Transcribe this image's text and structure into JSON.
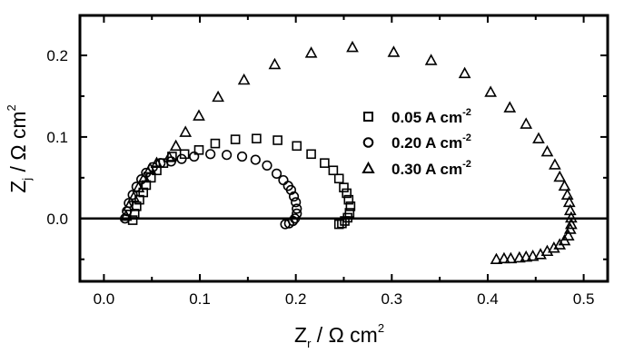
{
  "chart_data": {
    "type": "scatter",
    "title": "",
    "xlabel": "Z_r / Ω cm^2",
    "ylabel": "Z_j / Ω cm^2",
    "xlabel_parts": {
      "main": "Z",
      "sub": "r",
      "rest": " / Ω cm",
      "sup": "2"
    },
    "ylabel_parts": {
      "main": "Z",
      "sub": "j",
      "rest": " / Ω cm",
      "sup": "2"
    },
    "xlim": [
      -0.025,
      0.525
    ],
    "ylim": [
      -0.077,
      0.249
    ],
    "xticks": [
      0.0,
      0.1,
      0.2,
      0.3,
      0.4,
      0.5
    ],
    "xtick_labels": [
      "0.0",
      "0.1",
      "0.2",
      "0.3",
      "0.4",
      "0.5"
    ],
    "yticks": [
      0.0,
      0.1,
      0.2
    ],
    "ytick_labels": [
      "0.0",
      "0.1",
      "0.2"
    ],
    "grid": false,
    "zero_line": true,
    "legend_position": "inside-center",
    "series": [
      {
        "name": "0.05 A cm-2",
        "label_main": "0.05 A cm",
        "label_sup": "-2",
        "marker": "square",
        "points": [
          [
            0.03,
            -0.002
          ],
          [
            0.032,
            0.006
          ],
          [
            0.034,
            0.015
          ],
          [
            0.037,
            0.023
          ],
          [
            0.041,
            0.032
          ],
          [
            0.044,
            0.041
          ],
          [
            0.049,
            0.05
          ],
          [
            0.055,
            0.059
          ],
          [
            0.062,
            0.068
          ],
          [
            0.071,
            0.076
          ],
          [
            0.084,
            0.079
          ],
          [
            0.099,
            0.084
          ],
          [
            0.116,
            0.092
          ],
          [
            0.137,
            0.097
          ],
          [
            0.159,
            0.098
          ],
          [
            0.181,
            0.096
          ],
          [
            0.201,
            0.089
          ],
          [
            0.216,
            0.079
          ],
          [
            0.23,
            0.068
          ],
          [
            0.239,
            0.059
          ],
          [
            0.245,
            0.049
          ],
          [
            0.25,
            0.038
          ],
          [
            0.253,
            0.031
          ],
          [
            0.255,
            0.023
          ],
          [
            0.257,
            0.015
          ],
          [
            0.256,
            0.007
          ],
          [
            0.254,
            0.001
          ],
          [
            0.251,
            -0.003
          ],
          [
            0.248,
            -0.006
          ],
          [
            0.245,
            -0.007
          ]
        ]
      },
      {
        "name": "0.20 A cm-2",
        "label_main": "0.20 A cm",
        "label_sup": "-2",
        "marker": "circle",
        "points": [
          [
            0.022,
            0.0
          ],
          [
            0.024,
            0.009
          ],
          [
            0.026,
            0.019
          ],
          [
            0.03,
            0.029
          ],
          [
            0.034,
            0.039
          ],
          [
            0.039,
            0.048
          ],
          [
            0.044,
            0.056
          ],
          [
            0.051,
            0.063
          ],
          [
            0.059,
            0.068
          ],
          [
            0.07,
            0.07
          ],
          [
            0.081,
            0.073
          ],
          [
            0.094,
            0.076
          ],
          [
            0.111,
            0.079
          ],
          [
            0.128,
            0.078
          ],
          [
            0.144,
            0.076
          ],
          [
            0.158,
            0.072
          ],
          [
            0.17,
            0.065
          ],
          [
            0.18,
            0.055
          ],
          [
            0.187,
            0.047
          ],
          [
            0.192,
            0.04
          ],
          [
            0.195,
            0.035
          ],
          [
            0.198,
            0.027
          ],
          [
            0.2,
            0.02
          ],
          [
            0.201,
            0.012
          ],
          [
            0.201,
            0.006
          ],
          [
            0.199,
            0.0
          ],
          [
            0.197,
            -0.003
          ],
          [
            0.193,
            -0.006
          ],
          [
            0.189,
            -0.007
          ]
        ]
      },
      {
        "name": "0.30 A cm-2",
        "label_main": "0.30 A cm",
        "label_sup": "-2",
        "marker": "triangle",
        "points": [
          [
            0.023,
            0.003
          ],
          [
            0.026,
            0.015
          ],
          [
            0.031,
            0.026
          ],
          [
            0.036,
            0.038
          ],
          [
            0.042,
            0.05
          ],
          [
            0.048,
            0.061
          ],
          [
            0.055,
            0.068
          ],
          [
            0.068,
            0.075
          ],
          [
            0.075,
            0.089
          ],
          [
            0.085,
            0.106
          ],
          [
            0.099,
            0.126
          ],
          [
            0.119,
            0.149
          ],
          [
            0.146,
            0.17
          ],
          [
            0.178,
            0.189
          ],
          [
            0.216,
            0.203
          ],
          [
            0.259,
            0.21
          ],
          [
            0.302,
            0.204
          ],
          [
            0.341,
            0.194
          ],
          [
            0.376,
            0.178
          ],
          [
            0.403,
            0.155
          ],
          [
            0.423,
            0.136
          ],
          [
            0.44,
            0.116
          ],
          [
            0.453,
            0.098
          ],
          [
            0.462,
            0.082
          ],
          [
            0.47,
            0.066
          ],
          [
            0.475,
            0.051
          ],
          [
            0.48,
            0.04
          ],
          [
            0.483,
            0.029
          ],
          [
            0.485,
            0.02
          ],
          [
            0.486,
            0.01
          ],
          [
            0.487,
            0.001
          ],
          [
            0.487,
            -0.007
          ],
          [
            0.486,
            -0.013
          ],
          [
            0.484,
            -0.021
          ],
          [
            0.48,
            -0.027
          ],
          [
            0.475,
            -0.032
          ],
          [
            0.469,
            -0.036
          ],
          [
            0.462,
            -0.04
          ],
          [
            0.455,
            -0.044
          ],
          [
            0.447,
            -0.046
          ],
          [
            0.44,
            -0.047
          ],
          [
            0.433,
            -0.048
          ],
          [
            0.424,
            -0.049
          ],
          [
            0.417,
            -0.049
          ],
          [
            0.409,
            -0.05
          ]
        ]
      }
    ]
  },
  "colors": {
    "background": "#ffffff",
    "axis": "#000000",
    "marker_stroke": "#000000"
  }
}
